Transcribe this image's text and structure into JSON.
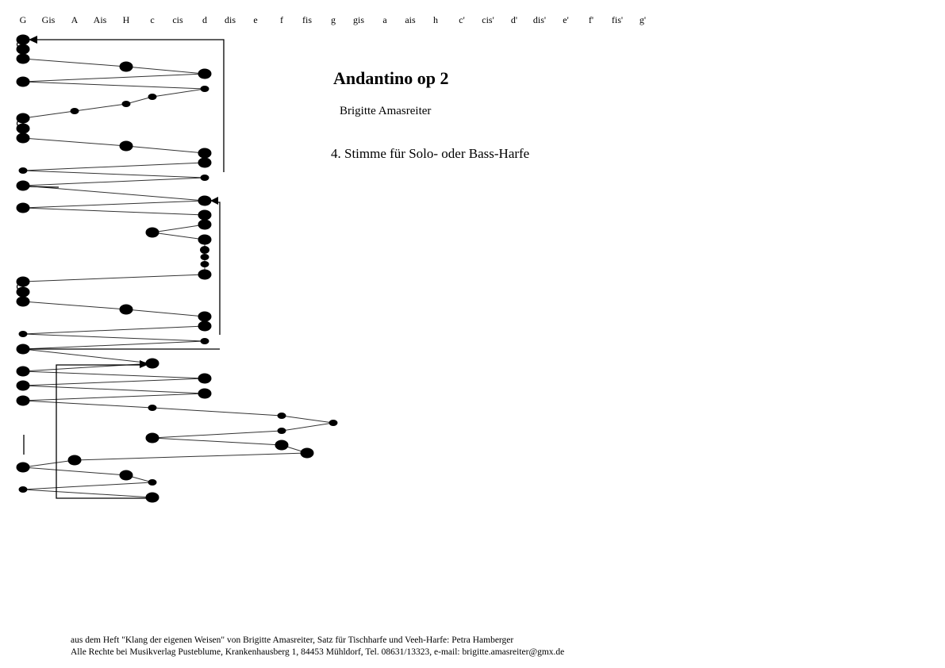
{
  "header_notes": [
    "G",
    "Gis",
    "A",
    "Ais",
    "H",
    "c",
    "cis",
    "d",
    "dis",
    "e",
    "f",
    "fis",
    "g",
    "gis",
    "a",
    "ais",
    "h",
    "c'",
    "cis'",
    "d'",
    "dis'",
    "e'",
    "f'",
    "fis'",
    "g'"
  ],
  "title": "Andantino op 2",
  "composer": "Brigitte Amasreiter",
  "subtitle": "4. Stimme für Solo- oder Bass-Harfe",
  "footer": {
    "line1": "aus dem Heft \"Klang der eigenen Weisen\" von Brigitte Amasreiter, Satz für Tischharfe und Veeh-Harfe: Petra Hamberger",
    "line2": "Alle Rechte bei Musikverlag Pusteblume, Krankenhausberg 1, 84453 Mühldorf, Tel. 08631/13323, e-mail: brigitte.amasreiter@gmx.de"
  },
  "notes": [
    [
      "G",
      "L"
    ],
    [
      "G",
      "L"
    ],
    [
      "G",
      "L"
    ],
    [
      "H",
      "L"
    ],
    [
      "d",
      "L"
    ],
    [
      "G",
      "L"
    ],
    [
      "d",
      "S"
    ],
    [
      "c",
      "S"
    ],
    [
      "H",
      "S"
    ],
    [
      "A",
      "S"
    ],
    [
      "G",
      "L"
    ],
    [
      "G",
      "L"
    ],
    [
      "G",
      "L"
    ],
    [
      "H",
      "L"
    ],
    [
      "d",
      "L"
    ],
    [
      "d",
      "L"
    ],
    [
      "G",
      "S"
    ],
    [
      "d",
      "S"
    ],
    [
      "G",
      "L"
    ],
    [
      "d",
      "L"
    ],
    [
      "G",
      "L"
    ],
    [
      "d",
      "L"
    ],
    [
      "d",
      "L"
    ],
    [
      "c",
      "L"
    ],
    [
      "d",
      "L"
    ],
    [
      "d",
      "M"
    ],
    [
      "d",
      "S"
    ],
    [
      "d",
      "S"
    ],
    [
      "d",
      "L"
    ],
    [
      "G",
      "L"
    ],
    [
      "G",
      "L"
    ],
    [
      "G",
      "L"
    ],
    [
      "H",
      "L"
    ],
    [
      "d",
      "L"
    ],
    [
      "d",
      "L"
    ],
    [
      "G",
      "S"
    ],
    [
      "d",
      "S"
    ],
    [
      "G",
      "L"
    ],
    [
      "c",
      "L"
    ],
    [
      "G",
      "L"
    ],
    [
      "d",
      "L"
    ],
    [
      "G",
      "L"
    ],
    [
      "d",
      "L"
    ],
    [
      "G",
      "L"
    ],
    [
      "c",
      "S"
    ],
    [
      "f",
      "S"
    ],
    [
      "g",
      "S"
    ],
    [
      "f",
      "S"
    ],
    [
      "c",
      "L"
    ],
    [
      "f",
      "L"
    ],
    [
      "fis",
      "L"
    ],
    [
      "A",
      "L"
    ],
    [
      "G",
      "L"
    ],
    [
      "H",
      "L"
    ],
    [
      "c",
      "S"
    ],
    [
      "G",
      "S"
    ],
    [
      "c",
      "L"
    ]
  ]
}
